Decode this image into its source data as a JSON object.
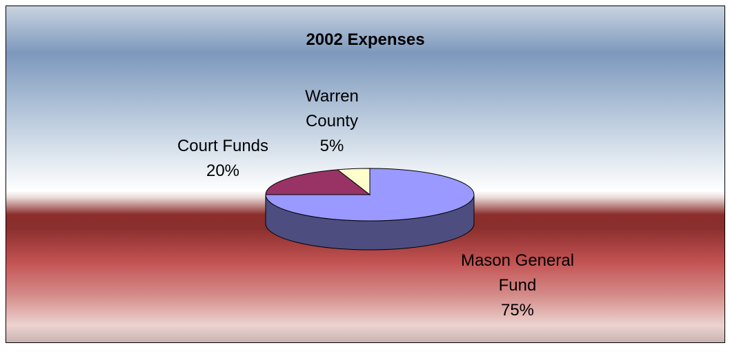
{
  "chart_data": {
    "type": "pie",
    "title": "2002 Expenses",
    "categories": [
      "Mason General Fund",
      "Court Funds",
      "Warren County"
    ],
    "values": [
      75,
      20,
      5
    ],
    "value_labels": [
      "75%",
      "20%",
      "5%"
    ],
    "colors": [
      "#9999ff",
      "#993366",
      "#ffffcc"
    ],
    "3d": true
  }
}
